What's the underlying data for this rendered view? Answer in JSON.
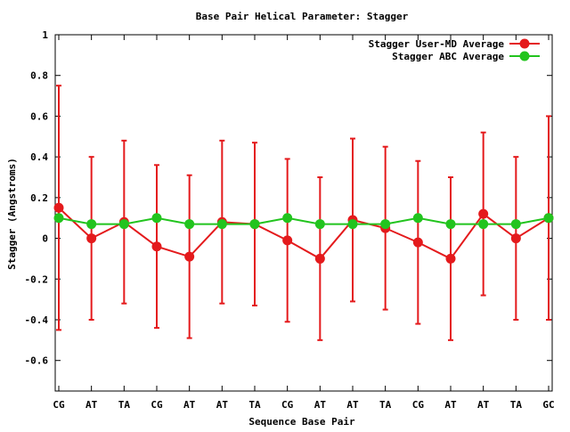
{
  "chart_data": {
    "type": "line",
    "title": "Base Pair Helical Parameter: Stagger",
    "xlabel": "Sequence Base Pair",
    "ylabel": "Stagger (Angstroms)",
    "categories": [
      "CG",
      "AT",
      "TA",
      "CG",
      "AT",
      "AT",
      "TA",
      "CG",
      "AT",
      "AT",
      "TA",
      "CG",
      "AT",
      "AT",
      "TA",
      "GC"
    ],
    "ylim": [
      -0.75,
      1.0
    ],
    "yticks": [
      -0.6,
      -0.4,
      -0.2,
      0,
      0.2,
      0.4,
      0.6,
      0.8,
      1
    ],
    "ytick_labels": [
      "-0.6",
      "-0.4",
      "-0.2",
      "0",
      "0.2",
      "0.4",
      "0.6",
      "0.8",
      "1"
    ],
    "grid": false,
    "legend_position": "top-right",
    "series": [
      {
        "name": "Stagger User-MD Average",
        "color": "#e41a1c",
        "values": [
          0.15,
          0.0,
          0.08,
          -0.04,
          -0.09,
          0.08,
          0.07,
          -0.01,
          -0.1,
          0.09,
          0.05,
          -0.02,
          -0.1,
          0.12,
          0.0,
          0.1
        ],
        "error_low": [
          -0.45,
          -0.4,
          -0.32,
          -0.44,
          -0.49,
          -0.32,
          -0.33,
          -0.41,
          -0.5,
          -0.31,
          -0.35,
          -0.42,
          -0.5,
          -0.28,
          -0.4,
          -0.4
        ],
        "error_high": [
          0.75,
          0.4,
          0.48,
          0.36,
          0.31,
          0.48,
          0.47,
          0.39,
          0.3,
          0.49,
          0.45,
          0.38,
          0.3,
          0.52,
          0.4,
          0.6
        ]
      },
      {
        "name": "Stagger ABC Average",
        "color": "#22c41e",
        "values": [
          0.1,
          0.07,
          0.07,
          0.1,
          0.07,
          0.07,
          0.07,
          0.1,
          0.07,
          0.07,
          0.07,
          0.1,
          0.07,
          0.07,
          0.07,
          0.1
        ]
      }
    ]
  }
}
